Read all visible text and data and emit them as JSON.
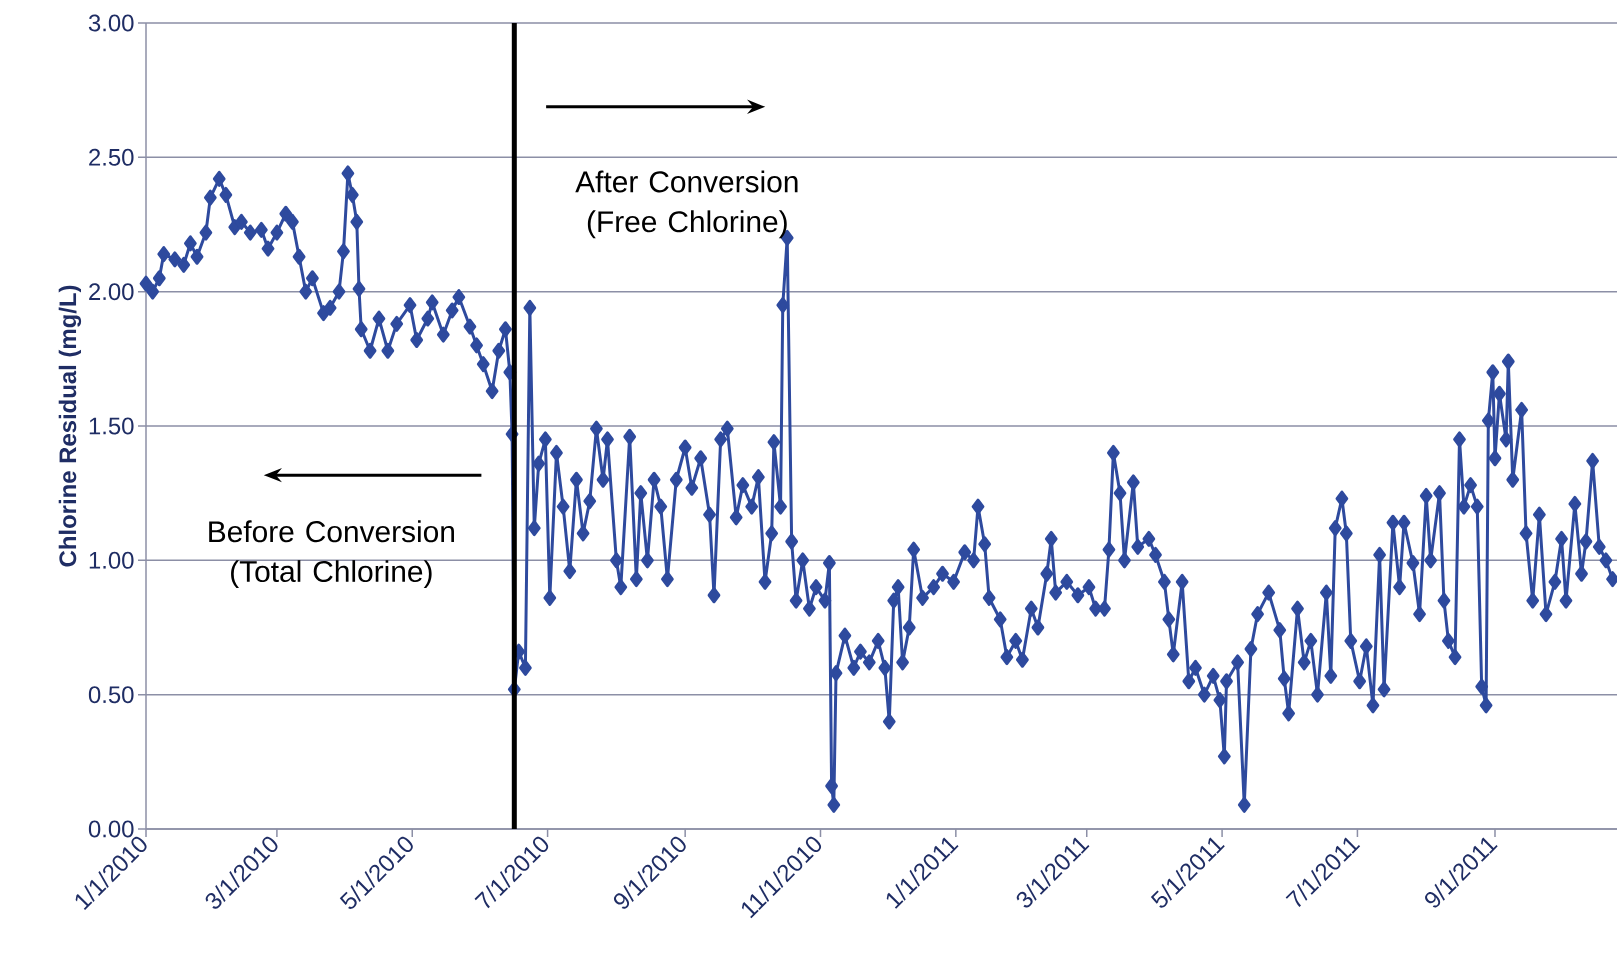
{
  "chart_data": {
    "type": "line",
    "ylabel": "Chlorine Residual (mg/L)",
    "color": "#2e4a9e",
    "marker": "diamond",
    "grid": "y",
    "xlim": [
      "2010-01-01",
      "2011-10-26"
    ],
    "ylim": [
      0,
      3
    ],
    "xticks": [
      {
        "value": "2010-01-01",
        "label": "1/1/2010"
      },
      {
        "value": "2010-03-01",
        "label": "3/1/2010"
      },
      {
        "value": "2010-05-01",
        "label": "5/1/2010"
      },
      {
        "value": "2010-07-01",
        "label": "7/1/2010"
      },
      {
        "value": "2010-09-01",
        "label": "9/1/2010"
      },
      {
        "value": "2010-11-01",
        "label": "11/1/2010"
      },
      {
        "value": "2011-01-01",
        "label": "1/1/2011"
      },
      {
        "value": "2011-03-01",
        "label": "3/1/2011"
      },
      {
        "value": "2011-05-01",
        "label": "5/1/2011"
      },
      {
        "value": "2011-07-01",
        "label": "7/1/2011"
      },
      {
        "value": "2011-09-01",
        "label": "9/1/2011"
      }
    ],
    "yticks": [
      {
        "value": 0,
        "label": "0.00"
      },
      {
        "value": 0.5,
        "label": "0.50"
      },
      {
        "value": 1,
        "label": "1.00"
      },
      {
        "value": 1.5,
        "label": "1.50"
      },
      {
        "value": 2,
        "label": "2.00"
      },
      {
        "value": 2.5,
        "label": "2.50"
      },
      {
        "value": 3,
        "label": "3.00"
      }
    ],
    "ref_lines": [
      {
        "axis": "x",
        "value": "2010-06-16",
        "color": "#000000"
      }
    ],
    "annotations": [
      "Before Conversion (Total Chlorine)",
      "After Conversion (Free Chlorine)"
    ],
    "x": [
      "2010-01-01",
      "2010-01-04",
      "2010-01-07",
      "2010-01-09",
      "2010-01-14",
      "2010-01-18",
      "2010-01-21",
      "2010-01-24",
      "2010-01-28",
      "2010-01-30",
      "2010-02-03",
      "2010-02-06",
      "2010-02-10",
      "2010-02-13",
      "2010-02-17",
      "2010-02-22",
      "2010-02-25",
      "2010-03-01",
      "2010-03-05",
      "2010-03-08",
      "2010-03-11",
      "2010-03-14",
      "2010-03-17",
      "2010-03-22",
      "2010-03-25",
      "2010-03-29",
      "2010-03-31",
      "2010-04-02",
      "2010-04-04",
      "2010-04-06",
      "2010-04-07",
      "2010-04-08",
      "2010-04-12",
      "2010-04-16",
      "2010-04-20",
      "2010-04-24",
      "2010-04-30",
      "2010-05-03",
      "2010-05-08",
      "2010-05-10",
      "2010-05-15",
      "2010-05-19",
      "2010-05-22",
      "2010-05-27",
      "2010-05-30",
      "2010-06-02",
      "2010-06-06",
      "2010-06-09",
      "2010-06-12",
      "2010-06-14",
      "2010-06-15",
      "2010-06-16",
      "2010-06-18",
      "2010-06-21",
      "2010-06-23",
      "2010-06-25",
      "2010-06-27",
      "2010-06-30",
      "2010-07-02",
      "2010-07-05",
      "2010-07-08",
      "2010-07-11",
      "2010-07-14",
      "2010-07-17",
      "2010-07-20",
      "2010-07-23",
      "2010-07-26",
      "2010-07-28",
      "2010-08-01",
      "2010-08-03",
      "2010-08-07",
      "2010-08-10",
      "2010-08-12",
      "2010-08-15",
      "2010-08-18",
      "2010-08-21",
      "2010-08-24",
      "2010-08-28",
      "2010-09-01",
      "2010-09-04",
      "2010-09-08",
      "2010-09-12",
      "2010-09-14",
      "2010-09-17",
      "2010-09-20",
      "2010-09-24",
      "2010-09-27",
      "2010-10-01",
      "2010-10-04",
      "2010-10-07",
      "2010-10-10",
      "2010-10-11",
      "2010-10-14",
      "2010-10-15",
      "2010-10-17",
      "2010-10-19",
      "2010-10-21",
      "2010-10-24",
      "2010-10-27",
      "2010-10-30",
      "2010-11-03",
      "2010-11-05",
      "2010-11-06",
      "2010-11-07",
      "2010-11-08",
      "2010-11-12",
      "2010-11-16",
      "2010-11-19",
      "2010-11-23",
      "2010-11-27",
      "2010-11-30",
      "2010-12-02",
      "2010-12-04",
      "2010-12-06",
      "2010-12-08",
      "2010-12-11",
      "2010-12-13",
      "2010-12-17",
      "2010-12-22",
      "2010-12-26",
      "2010-12-31",
      "2011-01-05",
      "2011-01-09",
      "2011-01-11",
      "2011-01-14",
      "2011-01-16",
      "2011-01-21",
      "2011-01-24",
      "2011-01-28",
      "2011-01-31",
      "2011-02-04",
      "2011-02-07",
      "2011-02-11",
      "2011-02-13",
      "2011-02-15",
      "2011-02-20",
      "2011-02-25",
      "2011-03-02",
      "2011-03-05",
      "2011-03-09",
      "2011-03-11",
      "2011-03-13",
      "2011-03-16",
      "2011-03-18",
      "2011-03-22",
      "2011-03-24",
      "2011-03-29",
      "2011-04-01",
      "2011-04-05",
      "2011-04-07",
      "2011-04-09",
      "2011-04-13",
      "2011-04-16",
      "2011-04-19",
      "2011-04-23",
      "2011-04-27",
      "2011-04-30",
      "2011-05-02",
      "2011-05-03",
      "2011-05-08",
      "2011-05-11",
      "2011-05-14",
      "2011-05-17",
      "2011-05-22",
      "2011-05-27",
      "2011-05-29",
      "2011-05-31",
      "2011-06-04",
      "2011-06-07",
      "2011-06-10",
      "2011-06-13",
      "2011-06-17",
      "2011-06-19",
      "2011-06-21",
      "2011-06-24",
      "2011-06-26",
      "2011-06-28",
      "2011-07-02",
      "2011-07-05",
      "2011-07-08",
      "2011-07-11",
      "2011-07-13",
      "2011-07-17",
      "2011-07-20",
      "2011-07-22",
      "2011-07-26",
      "2011-07-29",
      "2011-08-01",
      "2011-08-03",
      "2011-08-07",
      "2011-08-09",
      "2011-08-11",
      "2011-08-14",
      "2011-08-16",
      "2011-08-18",
      "2011-08-21",
      "2011-08-24",
      "2011-08-26",
      "2011-08-28",
      "2011-08-29",
      "2011-08-31",
      "2011-09-01",
      "2011-09-03",
      "2011-09-06",
      "2011-09-07",
      "2011-09-09",
      "2011-09-13",
      "2011-09-15",
      "2011-09-18",
      "2011-09-21",
      "2011-09-24",
      "2011-09-28",
      "2011-10-01",
      "2011-10-03",
      "2011-10-07",
      "2011-10-10",
      "2011-10-12",
      "2011-10-15",
      "2011-10-18",
      "2011-10-21",
      "2011-10-24"
    ],
    "values": [
      2.03,
      2.0,
      2.05,
      2.14,
      2.12,
      2.1,
      2.18,
      2.13,
      2.22,
      2.35,
      2.42,
      2.36,
      2.24,
      2.26,
      2.22,
      2.23,
      2.16,
      2.22,
      2.29,
      2.26,
      2.13,
      2.0,
      2.05,
      1.92,
      1.94,
      2.0,
      2.15,
      2.44,
      2.36,
      2.26,
      2.01,
      1.86,
      1.78,
      1.9,
      1.78,
      1.88,
      1.95,
      1.82,
      1.9,
      1.96,
      1.84,
      1.93,
      1.98,
      1.87,
      1.8,
      1.73,
      1.63,
      1.78,
      1.86,
      1.7,
      1.47,
      0.52,
      0.66,
      0.6,
      1.94,
      1.12,
      1.36,
      1.45,
      0.86,
      1.4,
      1.2,
      0.96,
      1.3,
      1.1,
      1.22,
      1.49,
      1.3,
      1.45,
      1.0,
      0.9,
      1.46,
      0.93,
      1.25,
      1.0,
      1.3,
      1.2,
      0.93,
      1.3,
      1.42,
      1.27,
      1.38,
      1.17,
      0.87,
      1.45,
      1.49,
      1.16,
      1.28,
      1.2,
      1.31,
      0.92,
      1.1,
      1.44,
      1.2,
      1.95,
      2.2,
      1.07,
      0.85,
      1.0,
      0.82,
      0.9,
      0.85,
      0.99,
      0.16,
      0.09,
      0.58,
      0.72,
      0.6,
      0.66,
      0.62,
      0.7,
      0.6,
      0.4,
      0.85,
      0.9,
      0.62,
      0.75,
      1.04,
      0.86,
      0.9,
      0.95,
      0.92,
      1.03,
      1.0,
      1.2,
      1.06,
      0.86,
      0.78,
      0.64,
      0.7,
      0.63,
      0.82,
      0.75,
      0.95,
      1.08,
      0.88,
      0.92,
      0.87,
      0.9,
      0.82,
      0.82,
      1.04,
      1.4,
      1.25,
      1.0,
      1.29,
      1.05,
      1.08,
      1.02,
      0.92,
      0.78,
      0.65,
      0.92,
      0.55,
      0.6,
      0.5,
      0.57,
      0.48,
      0.27,
      0.55,
      0.62,
      0.09,
      0.67,
      0.8,
      0.88,
      0.74,
      0.56,
      0.43,
      0.82,
      0.62,
      0.7,
      0.5,
      0.88,
      0.57,
      1.12,
      1.23,
      1.1,
      0.7,
      0.55,
      0.68,
      0.46,
      1.02,
      0.52,
      1.14,
      0.9,
      1.14,
      0.99,
      0.8,
      1.24,
      1.0,
      1.25,
      0.85,
      0.7,
      0.64,
      1.45,
      1.2,
      1.28,
      1.2,
      0.53,
      0.46,
      1.52,
      1.7,
      1.38,
      1.62,
      1.45,
      1.74,
      1.3,
      1.56,
      1.1,
      0.85,
      1.17,
      0.8,
      0.92,
      1.08,
      0.85,
      1.21,
      0.95,
      1.07,
      1.37,
      1.05,
      1.0,
      0.93
    ]
  }
}
